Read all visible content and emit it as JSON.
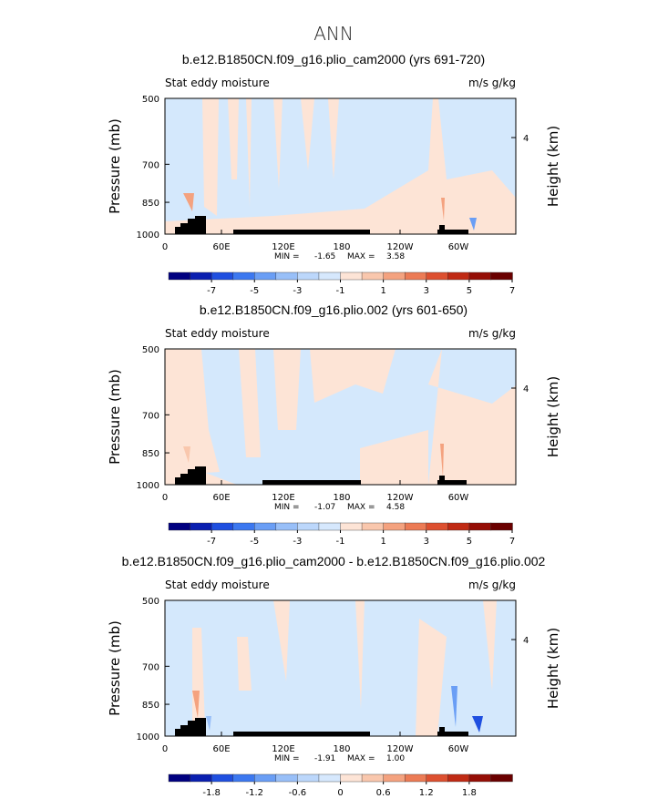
{
  "main_title": "ANN",
  "chart_data": [
    {
      "type": "contour",
      "title": "b.e12.B1850CN.f09_g16.plio_cam2000 (yrs 691-720)",
      "field_label": "Stat eddy moisture",
      "units": "m/s g/kg",
      "ylabel": "Pressure (mb)",
      "ylabel_right": "Height (km)",
      "y_ticks": [
        "500",
        "700",
        "850",
        "1000"
      ],
      "y_right_ticks": [
        "4"
      ],
      "x_ticks": [
        "0",
        "60E",
        "120E",
        "180",
        "120W",
        "60W"
      ],
      "min_label": "MIN =",
      "min_value": "-1.65",
      "max_label": "MAX =",
      "max_value": "3.58",
      "colorbar_labels": [
        "-7",
        "-5",
        "-3",
        "-1",
        "1",
        "3",
        "5",
        "7"
      ],
      "colorbar_colors": [
        "#000080",
        "#0a1fb0",
        "#1f4fe0",
        "#3c78f0",
        "#6a9ef5",
        "#98bff8",
        "#bcd7fb",
        "#d6e8fd",
        "#fde4d6",
        "#f9c7ad",
        "#f4a27f",
        "#ec7b55",
        "#dd5030",
        "#c02a14",
        "#950e06",
        "#6a0000"
      ],
      "note": "Mostly weak values (light blue / light peach); red/blue cores are small and localized."
    },
    {
      "type": "contour",
      "title": "b.e12.B1850CN.f09_g16.plio.002 (yrs 601-650)",
      "field_label": "Stat eddy moisture",
      "units": "m/s g/kg",
      "ylabel": "Pressure (mb)",
      "ylabel_right": "Height (km)",
      "y_ticks": [
        "500",
        "700",
        "850",
        "1000"
      ],
      "y_right_ticks": [
        "4"
      ],
      "x_ticks": [
        "0",
        "60E",
        "120E",
        "180",
        "120W",
        "60W"
      ],
      "min_label": "MIN =",
      "min_value": "-1.07",
      "max_label": "MAX =",
      "max_value": "4.58",
      "colorbar_labels": [
        "-7",
        "-5",
        "-3",
        "-1",
        "1",
        "3",
        "5",
        "7"
      ],
      "colorbar_colors": [
        "#000080",
        "#0a1fb0",
        "#1f4fe0",
        "#3c78f0",
        "#6a9ef5",
        "#98bff8",
        "#bcd7fb",
        "#d6e8fd",
        "#fde4d6",
        "#f9c7ad",
        "#f4a27f",
        "#ec7b55",
        "#dd5030",
        "#c02a14",
        "#950e06",
        "#6a0000"
      ]
    },
    {
      "type": "contour",
      "title": "b.e12.B1850CN.f09_g16.plio_cam2000 - b.e12.B1850CN.f09_g16.plio.002",
      "field_label": "Stat eddy moisture",
      "units": "m/s g/kg",
      "ylabel": "Pressure (mb)",
      "ylabel_right": "Height (km)",
      "y_ticks": [
        "500",
        "700",
        "850",
        "1000"
      ],
      "y_right_ticks": [
        "4"
      ],
      "x_ticks": [
        "0",
        "60E",
        "120E",
        "180",
        "120W",
        "60W"
      ],
      "min_label": "MIN =",
      "min_value": "-1.91",
      "max_label": "MAX =",
      "max_value": "1.00",
      "colorbar_labels": [
        "-1.8",
        "-1.2",
        "-0.6",
        "0",
        "0.6",
        "1.2",
        "1.8"
      ],
      "colorbar_colors": [
        "#000080",
        "#0a1fb0",
        "#1f4fe0",
        "#3c78f0",
        "#6a9ef5",
        "#98bff8",
        "#bcd7fb",
        "#d6e8fd",
        "#fde4d6",
        "#f9c7ad",
        "#f4a27f",
        "#ec7b55",
        "#dd5030",
        "#c02a14",
        "#950e06",
        "#6a0000"
      ]
    }
  ]
}
